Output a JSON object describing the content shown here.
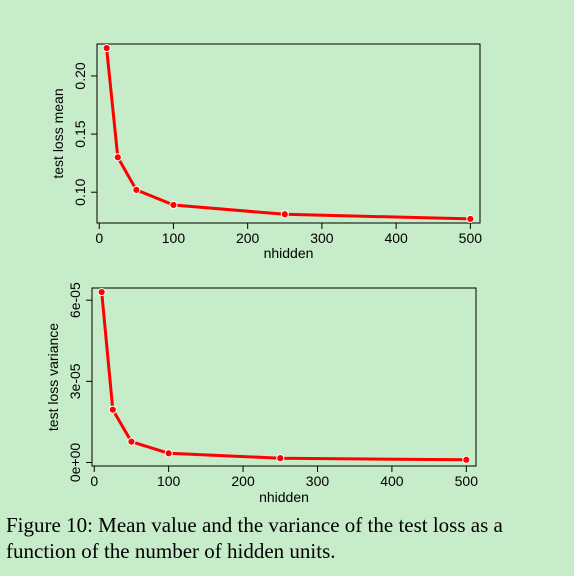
{
  "chart_data": [
    {
      "type": "line",
      "xlabel": "nhidden",
      "ylabel": "test loss mean",
      "x": [
        10,
        25,
        50,
        100,
        250,
        500
      ],
      "series": [
        {
          "values": [
            0.224,
            0.13,
            0.102,
            0.089,
            0.081,
            0.077
          ]
        }
      ],
      "xticks": [
        "0",
        "100",
        "200",
        "300",
        "400",
        "500"
      ],
      "yticks": [
        "0.10",
        "0.15",
        "0.20"
      ],
      "xlim": [
        -3,
        513
      ],
      "ylim": [
        0.0735,
        0.2275
      ],
      "grid": false
    },
    {
      "type": "line",
      "xlabel": "nhidden",
      "ylabel": "test loss variance",
      "x": [
        10,
        25,
        50,
        100,
        250,
        500
      ],
      "series": [
        {
          "values": [
            6.3e-05,
            1.95e-05,
            7.7e-06,
            3.4e-06,
            1.6e-06,
            1e-06
          ]
        }
      ],
      "xticks": [
        "0",
        "100",
        "200",
        "300",
        "400",
        "500"
      ],
      "yticks": [
        "0e+00",
        "3e-05",
        "6e-05"
      ],
      "xlim": [
        -3,
        513
      ],
      "ylim": [
        -1.3e-06,
        6.45e-05
      ],
      "grid": false
    }
  ],
  "caption": "Figure 10: Mean value and the variance of the test loss as a function of the number of hidden units.",
  "colors": {
    "series": "#ff0000",
    "background": "#c6ecc9"
  }
}
